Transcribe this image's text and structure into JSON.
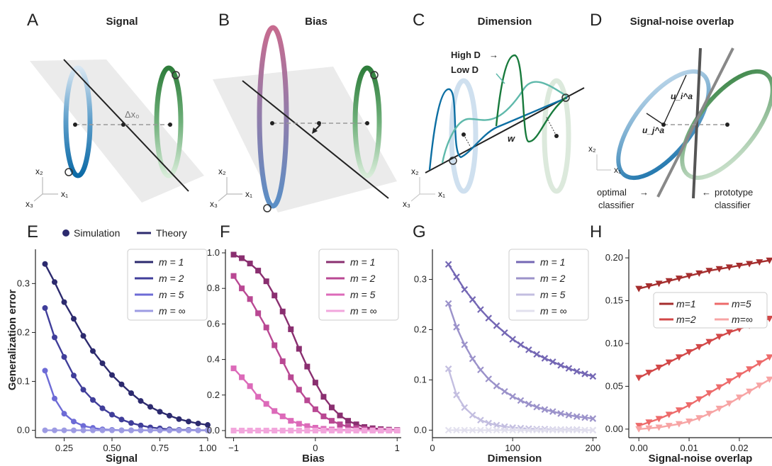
{
  "panels_top": [
    {
      "letter": "A",
      "title": "Signal",
      "annotation": "Δx₀"
    },
    {
      "letter": "B",
      "title": "Bias"
    },
    {
      "letter": "C",
      "title": "Dimension",
      "high_label": "High D",
      "low_label": "Low D",
      "w_label": "w"
    },
    {
      "letter": "D",
      "title": "Signal-noise overlap",
      "u_i": "u_i^a",
      "u_j": "u_j^a",
      "optimal": [
        "optimal",
        "classifier"
      ],
      "prototype": [
        "prototype",
        "classifier"
      ]
    }
  ],
  "axis_glyphs": {
    "x1": "x₁",
    "x2": "x₂",
    "x3": "x₃"
  },
  "ylabel_shared": "Generalization error",
  "top_legend": {
    "simulation": "Simulation",
    "theory": "Theory"
  },
  "colors": {
    "E": [
      "#2c2a6e",
      "#403e9a",
      "#6d6bd6",
      "#9d9be3"
    ],
    "F": [
      "#8a2f70",
      "#b94893",
      "#dc6ab9",
      "#f2a6dc"
    ],
    "G": [
      "#7467b4",
      "#9b92ca",
      "#c3bee0",
      "#e2e0ee"
    ],
    "H": [
      "#a52d2d",
      "#d24747",
      "#ed6a6a",
      "#f7a4a4"
    ]
  },
  "chart_data": [
    {
      "panel": "E",
      "type": "line",
      "marker": "circle",
      "xlabel": "Signal",
      "ylabel": "Generalization error",
      "xlim": [
        0.1,
        1.0
      ],
      "ylim": [
        -0.015,
        0.37
      ],
      "xticks": [
        0.25,
        0.5,
        0.75,
        1.0
      ],
      "xticklabels": [
        "0.25",
        "0.50",
        "0.75",
        "1.00"
      ],
      "yticks": [
        0.0,
        0.1,
        0.2,
        0.3
      ],
      "yticklabels": [
        "0.0",
        "0.1",
        "0.2",
        "0.3"
      ],
      "x": [
        0.15,
        0.2,
        0.25,
        0.3,
        0.35,
        0.4,
        0.45,
        0.5,
        0.55,
        0.6,
        0.65,
        0.7,
        0.75,
        0.8,
        0.85,
        0.9,
        0.95,
        1.0
      ],
      "series": [
        {
          "name": "m = 1",
          "values": [
            0.34,
            0.303,
            0.262,
            0.228,
            0.193,
            0.162,
            0.137,
            0.113,
            0.094,
            0.076,
            0.06,
            0.048,
            0.038,
            0.03,
            0.023,
            0.018,
            0.014,
            0.011
          ]
        },
        {
          "name": "m = 2",
          "values": [
            0.25,
            0.19,
            0.15,
            0.112,
            0.083,
            0.062,
            0.045,
            0.032,
            0.022,
            0.015,
            0.01,
            0.006,
            0.004,
            0.002,
            0.001,
            0.001,
            0.0,
            0.0
          ]
        },
        {
          "name": "m = 5",
          "values": [
            0.122,
            0.065,
            0.034,
            0.018,
            0.009,
            0.005,
            0.002,
            0.001,
            0.0,
            0.0,
            0.0,
            0.0,
            0.0,
            0.0,
            0.0,
            0.0,
            0.0,
            0.0
          ]
        },
        {
          "name": "m = ∞",
          "values": [
            0.0,
            0.0,
            0.0,
            0.0,
            0.0,
            0.0,
            0.0,
            0.0,
            0.0,
            0.0,
            0.0,
            0.0,
            0.0,
            0.0,
            0.0,
            0.0,
            0.0,
            0.0
          ]
        }
      ]
    },
    {
      "panel": "F",
      "type": "line",
      "marker": "square",
      "xlabel": "Bias",
      "xlim": [
        -1.1,
        1.05
      ],
      "ylim": [
        -0.04,
        1.02
      ],
      "xticks": [
        -1,
        0,
        1
      ],
      "xticklabels": [
        "−1",
        "0",
        "1"
      ],
      "yticks": [
        0.0,
        0.2,
        0.4,
        0.6,
        0.8,
        1.0
      ],
      "yticklabels": [
        "0.0",
        "0.2",
        "0.4",
        "0.6",
        "0.8",
        "1.0"
      ],
      "x": [
        -1.0,
        -0.9,
        -0.8,
        -0.7,
        -0.6,
        -0.5,
        -0.4,
        -0.3,
        -0.2,
        -0.1,
        0.0,
        0.1,
        0.2,
        0.3,
        0.4,
        0.5,
        0.6,
        0.7,
        0.8,
        0.9,
        1.0
      ],
      "series": [
        {
          "name": "m = 1",
          "values": [
            0.99,
            0.97,
            0.94,
            0.9,
            0.84,
            0.76,
            0.67,
            0.57,
            0.46,
            0.36,
            0.27,
            0.19,
            0.13,
            0.085,
            0.055,
            0.035,
            0.02,
            0.013,
            0.008,
            0.005,
            0.003
          ]
        },
        {
          "name": "m = 2",
          "values": [
            0.87,
            0.8,
            0.74,
            0.66,
            0.58,
            0.48,
            0.39,
            0.3,
            0.23,
            0.17,
            0.12,
            0.08,
            0.055,
            0.035,
            0.022,
            0.014,
            0.009,
            0.005,
            0.003,
            0.002,
            0.001
          ]
        },
        {
          "name": "m = 5",
          "values": [
            0.35,
            0.3,
            0.25,
            0.19,
            0.15,
            0.11,
            0.08,
            0.055,
            0.038,
            0.025,
            0.016,
            0.01,
            0.006,
            0.004,
            0.002,
            0.001,
            0.001,
            0.0,
            0.0,
            0.0,
            0.0
          ]
        },
        {
          "name": "m = ∞",
          "values": [
            0.0,
            0.0,
            0.0,
            0.0,
            0.0,
            0.0,
            0.0,
            0.0,
            0.0,
            0.0,
            0.0,
            0.0,
            0.0,
            0.0,
            0.0,
            0.0,
            0.0,
            0.0,
            0.0,
            0.0,
            0.0
          ]
        }
      ]
    },
    {
      "panel": "G",
      "type": "line",
      "marker": "x",
      "xlabel": "Dimension",
      "xlim": [
        0,
        205
      ],
      "ylim": [
        -0.015,
        0.36
      ],
      "xticks": [
        0,
        100,
        200
      ],
      "xticklabels": [
        "0",
        "100",
        "200"
      ],
      "yticks": [
        0.0,
        0.1,
        0.2,
        0.3
      ],
      "yticklabels": [
        "0.0",
        "0.1",
        "0.2",
        "0.3"
      ],
      "x": [
        20,
        30,
        40,
        50,
        60,
        70,
        80,
        90,
        100,
        110,
        120,
        130,
        140,
        150,
        160,
        170,
        180,
        190,
        200
      ],
      "series": [
        {
          "name": "m = 1",
          "values": [
            0.33,
            0.305,
            0.28,
            0.26,
            0.24,
            0.223,
            0.208,
            0.194,
            0.181,
            0.17,
            0.16,
            0.151,
            0.143,
            0.136,
            0.129,
            0.123,
            0.117,
            0.112,
            0.107
          ]
        },
        {
          "name": "m = 2",
          "values": [
            0.252,
            0.205,
            0.17,
            0.142,
            0.12,
            0.102,
            0.088,
            0.077,
            0.067,
            0.059,
            0.052,
            0.046,
            0.041,
            0.037,
            0.033,
            0.03,
            0.027,
            0.025,
            0.023
          ]
        },
        {
          "name": "m = 5",
          "values": [
            0.122,
            0.07,
            0.045,
            0.03,
            0.02,
            0.014,
            0.01,
            0.007,
            0.005,
            0.004,
            0.003,
            0.002,
            0.002,
            0.001,
            0.001,
            0.001,
            0.001,
            0.0,
            0.0
          ]
        },
        {
          "name": "m = ∞",
          "values": [
            0.0,
            0.0,
            0.0,
            0.0,
            0.0,
            0.0,
            0.0,
            0.0,
            0.0,
            0.0,
            0.0,
            0.0,
            0.0,
            0.0,
            0.0,
            0.0,
            0.0,
            0.0,
            0.0
          ]
        }
      ]
    },
    {
      "panel": "H",
      "type": "line",
      "marker": "triangle-down",
      "xlabel": "Signal-noise overlap",
      "xlim": [
        -0.002,
        0.0265
      ],
      "ylim": [
        -0.01,
        0.21
      ],
      "xticks": [
        0.0,
        0.01,
        0.02
      ],
      "xticklabels": [
        "0.00",
        "0.01",
        "0.02"
      ],
      "yticks": [
        0.0,
        0.05,
        0.1,
        0.15,
        0.2
      ],
      "yticklabels": [
        "0.00",
        "0.05",
        "0.10",
        "0.15",
        "0.20"
      ],
      "x": [
        0.0,
        0.002,
        0.004,
        0.006,
        0.008,
        0.01,
        0.012,
        0.014,
        0.016,
        0.018,
        0.02,
        0.022,
        0.024,
        0.026
      ],
      "series": [
        {
          "name": "m=1",
          "values": [
            0.164,
            0.167,
            0.17,
            0.173,
            0.176,
            0.179,
            0.182,
            0.185,
            0.187,
            0.189,
            0.191,
            0.193,
            0.195,
            0.197
          ]
        },
        {
          "name": "m=2",
          "values": [
            0.06,
            0.066,
            0.072,
            0.078,
            0.084,
            0.09,
            0.096,
            0.102,
            0.108,
            0.113,
            0.117,
            0.121,
            0.125,
            0.129
          ]
        },
        {
          "name": "m=5",
          "values": [
            0.004,
            0.008,
            0.012,
            0.017,
            0.022,
            0.028,
            0.035,
            0.042,
            0.049,
            0.056,
            0.063,
            0.07,
            0.077,
            0.084
          ]
        },
        {
          "name": "m=∞",
          "values": [
            0.0,
            0.001,
            0.002,
            0.004,
            0.006,
            0.009,
            0.013,
            0.018,
            0.024,
            0.03,
            0.037,
            0.044,
            0.051,
            0.058
          ]
        }
      ]
    }
  ]
}
